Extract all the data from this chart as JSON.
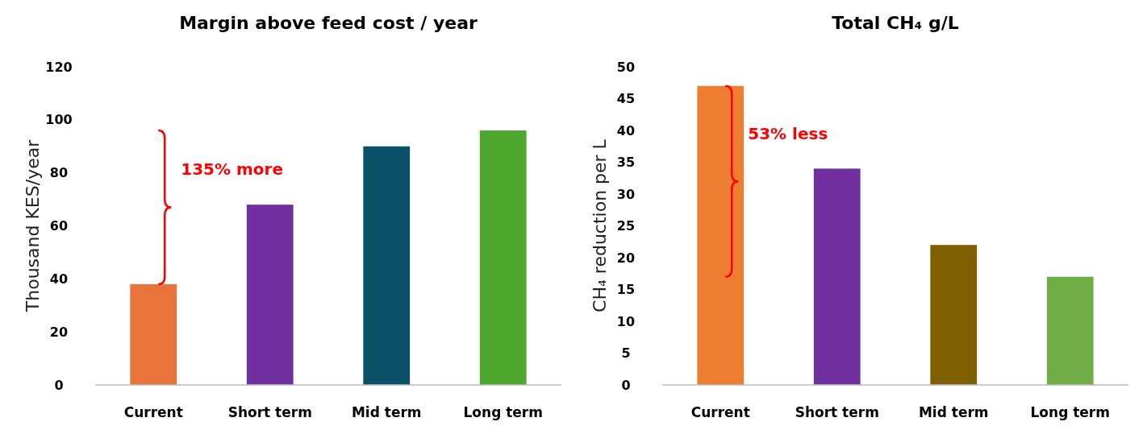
{
  "chart_data": [
    {
      "type": "bar",
      "title": "Margin above feed cost / year",
      "ylabel": "Thousand KES/year",
      "categories": [
        "Current",
        "Short term",
        "Mid term",
        "Long term"
      ],
      "values": [
        38,
        68,
        90,
        96
      ],
      "colors": [
        "#e8743b",
        "#7030a0",
        "#0b5069",
        "#4ea72e"
      ],
      "ylim": [
        0,
        120
      ],
      "yticks": [
        0,
        20,
        40,
        60,
        80,
        100,
        120
      ],
      "grid": false,
      "annotations": [
        "135% more"
      ]
    },
    {
      "type": "bar",
      "title": "Total CH₄ g/L",
      "ylabel": "CH₄ reduction per L",
      "categories": [
        "Current",
        "Short term",
        "Mid term",
        "Long term"
      ],
      "values": [
        47,
        34,
        22,
        17
      ],
      "colors": [
        "#ed7d31",
        "#7030a0",
        "#7f6000",
        "#70ad47"
      ],
      "ylim": [
        0,
        50
      ],
      "yticks": [
        0,
        5,
        10,
        15,
        20,
        25,
        30,
        35,
        40,
        45,
        50
      ],
      "grid": false,
      "annotations": [
        "53% less"
      ]
    }
  ]
}
